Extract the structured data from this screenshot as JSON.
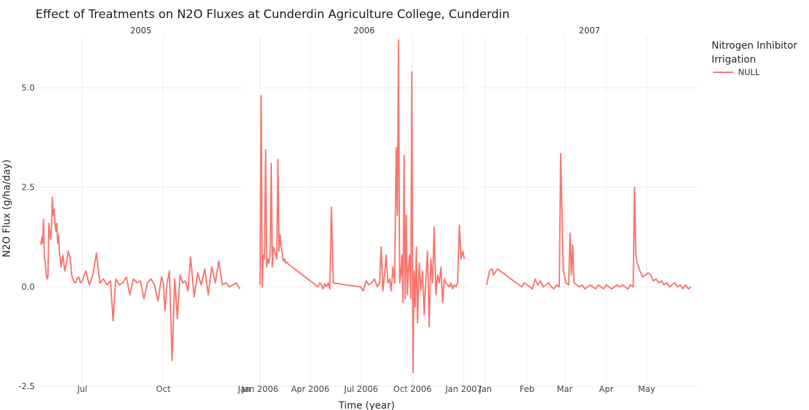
{
  "chart_data": {
    "type": "line",
    "title": "Effect of Treatments on N2O Fluxes at Cunderdin Agriculture College, Cunderdin",
    "xlabel": "Time (year)",
    "ylabel": "N2O Flux (g/ha/day)",
    "ylim": [
      -2.5,
      6.3
    ],
    "y_ticks": [
      -2.5,
      0.0,
      2.5,
      5.0
    ],
    "y_tick_labels": [
      "-2.5",
      "0.0",
      "2.5",
      "5.0"
    ],
    "grid": true,
    "legend": {
      "title_lines": [
        "Nitrogen Inhibitor",
        "Irrigation"
      ],
      "placement": "right",
      "entries": [
        {
          "label": "NULL",
          "color": "#F8766D"
        }
      ]
    },
    "series_color": "#F8766D",
    "panels": [
      {
        "label": "2005",
        "x_range": [
          "2005-05-12",
          "2005-12-31"
        ],
        "x_ticks": [
          {
            "date": "2005-07-01",
            "label": "Jul"
          },
          {
            "date": "2005-10-01",
            "label": "Oct"
          },
          {
            "date": "2006-01-01",
            "label": "Jan"
          }
        ],
        "series": [
          {
            "name": "NULL",
            "x": [
              "2005-05-15",
              "2005-05-16",
              "2005-05-17",
              "2005-05-18",
              "2005-05-19",
              "2005-05-20",
              "2005-05-21",
              "2005-05-22",
              "2005-05-23",
              "2005-05-24",
              "2005-05-25",
              "2005-05-26",
              "2005-05-27",
              "2005-05-28",
              "2005-05-29",
              "2005-05-30",
              "2005-05-31",
              "2005-06-01",
              "2005-06-02",
              "2005-06-03",
              "2005-06-04",
              "2005-06-05",
              "2005-06-06",
              "2005-06-07",
              "2005-06-09",
              "2005-06-11",
              "2005-06-13",
              "2005-06-15",
              "2005-06-17",
              "2005-06-19",
              "2005-06-21",
              "2005-06-23",
              "2005-06-25",
              "2005-06-27",
              "2005-06-29",
              "2005-07-01",
              "2005-07-05",
              "2005-07-09",
              "2005-07-13",
              "2005-07-17",
              "2005-07-21",
              "2005-07-25",
              "2005-07-29",
              "2005-08-02",
              "2005-08-05",
              "2005-08-08",
              "2005-08-12",
              "2005-08-16",
              "2005-08-20",
              "2005-08-24",
              "2005-08-28",
              "2005-09-01",
              "2005-09-05",
              "2005-09-09",
              "2005-09-13",
              "2005-09-17",
              "2005-09-21",
              "2005-09-25",
              "2005-09-29",
              "2005-10-01",
              "2005-10-03",
              "2005-10-05",
              "2005-10-08",
              "2005-10-11",
              "2005-10-14",
              "2005-10-17",
              "2005-10-20",
              "2005-10-23",
              "2005-10-26",
              "2005-10-29",
              "2005-11-01",
              "2005-11-05",
              "2005-11-09",
              "2005-11-13",
              "2005-11-17",
              "2005-11-21",
              "2005-11-25",
              "2005-11-29",
              "2005-12-03",
              "2005-12-07",
              "2005-12-11",
              "2005-12-15",
              "2005-12-19",
              "2005-12-23",
              "2005-12-27"
            ],
            "y": [
              1.05,
              1.25,
              1.1,
              1.7,
              0.7,
              0.6,
              0.3,
              0.2,
              0.25,
              1.6,
              1.4,
              1.2,
              1.5,
              2.25,
              1.8,
              1.95,
              1.6,
              1.4,
              1.6,
              1.1,
              1.3,
              0.9,
              0.7,
              0.5,
              0.8,
              0.4,
              0.6,
              0.9,
              0.75,
              0.3,
              0.15,
              0.1,
              0.2,
              0.25,
              0.1,
              0.15,
              0.4,
              0.05,
              0.3,
              0.85,
              0.1,
              0.2,
              0.05,
              0.15,
              -0.85,
              0.2,
              0.05,
              0.1,
              0.25,
              -0.2,
              0.2,
              0.1,
              0.15,
              -0.3,
              0.1,
              0.2,
              0.05,
              -0.35,
              0.25,
              0.1,
              -0.6,
              0.05,
              0.4,
              -1.85,
              0.2,
              -0.8,
              0.3,
              0.1,
              0.15,
              -0.1,
              0.75,
              -0.25,
              0.35,
              0.05,
              0.45,
              -0.2,
              0.5,
              0.1,
              0.65,
              0.05,
              0.1,
              0.0,
              0.05,
              0.1,
              -0.05
            ]
          }
        ]
      },
      {
        "label": "2006",
        "x_range": [
          "2005-12-31",
          "2007-01-10"
        ],
        "x_ticks": [
          {
            "date": "2006-01-01",
            "label": "Jan 2006"
          },
          {
            "date": "2006-04-01",
            "label": "Apr 2006"
          },
          {
            "date": "2006-07-01",
            "label": "Jul 2006"
          },
          {
            "date": "2006-10-01",
            "label": "Oct 2006"
          },
          {
            "date": "2007-01-01",
            "label": "Jan 2007"
          }
        ],
        "series": [
          {
            "name": "NULL",
            "x": [
              "2006-01-01",
              "2006-01-03",
              "2006-01-05",
              "2006-01-07",
              "2006-01-09",
              "2006-01-11",
              "2006-01-13",
              "2006-01-15",
              "2006-01-17",
              "2006-01-19",
              "2006-01-21",
              "2006-01-23",
              "2006-01-25",
              "2006-01-27",
              "2006-01-29",
              "2006-01-31",
              "2006-02-02",
              "2006-02-04",
              "2006-02-06",
              "2006-02-08",
              "2006-02-10",
              "2006-02-12",
              "2006-02-14",
              "2006-02-16",
              "2006-02-18",
              "2006-02-20",
              "2006-04-15",
              "2006-04-18",
              "2006-04-21",
              "2006-04-24",
              "2006-04-27",
              "2006-04-30",
              "2006-05-03",
              "2006-05-06",
              "2006-05-09",
              "2006-05-12",
              "2006-06-30",
              "2006-07-05",
              "2006-07-10",
              "2006-07-15",
              "2006-07-20",
              "2006-07-25",
              "2006-07-30",
              "2006-08-03",
              "2006-08-06",
              "2006-08-09",
              "2006-08-12",
              "2006-08-15",
              "2006-08-18",
              "2006-08-21",
              "2006-08-24",
              "2006-08-27",
              "2006-08-30",
              "2006-09-02",
              "2006-09-04",
              "2006-09-06",
              "2006-09-08",
              "2006-09-10",
              "2006-09-12",
              "2006-09-14",
              "2006-09-16",
              "2006-09-18",
              "2006-09-20",
              "2006-09-22",
              "2006-09-24",
              "2006-09-26",
              "2006-09-28",
              "2006-09-30",
              "2006-10-02",
              "2006-10-04",
              "2006-10-06",
              "2006-10-08",
              "2006-10-10",
              "2006-10-13",
              "2006-10-16",
              "2006-10-19",
              "2006-10-22",
              "2006-10-25",
              "2006-10-28",
              "2006-10-31",
              "2006-11-03",
              "2006-11-06",
              "2006-11-09",
              "2006-11-12",
              "2006-11-15",
              "2006-11-18",
              "2006-11-21",
              "2006-11-24",
              "2006-11-27",
              "2006-11-30",
              "2006-12-03",
              "2006-12-06",
              "2006-12-09",
              "2006-12-12",
              "2006-12-15",
              "2006-12-18",
              "2006-12-21",
              "2006-12-24",
              "2006-12-27",
              "2006-12-30",
              "2007-01-02"
            ],
            "y": [
              0.05,
              4.8,
              0.0,
              0.8,
              0.7,
              3.45,
              0.5,
              0.7,
              0.6,
              0.8,
              3.1,
              0.5,
              1.0,
              0.9,
              0.8,
              0.7,
              3.2,
              0.9,
              1.3,
              1.0,
              0.8,
              0.65,
              0.7,
              0.6,
              0.62,
              0.58,
              0.0,
              0.1,
              0.05,
              -0.05,
              0.08,
              0.0,
              0.1,
              -0.05,
              2.0,
              0.1,
              0.0,
              -0.1,
              0.15,
              0.05,
              0.1,
              0.2,
              0.0,
              0.1,
              1.0,
              -0.1,
              0.3,
              0.8,
              0.1,
              0.2,
              -0.1,
              0.5,
              0.1,
              3.5,
              1.8,
              6.2,
              0.1,
              0.3,
              0.8,
              -0.4,
              3.3,
              -0.3,
              1.8,
              -0.2,
              0.5,
              0.8,
              -0.3,
              5.4,
              -2.15,
              0.4,
              -0.5,
              1.0,
              -0.9,
              0.6,
              -0.1,
              0.4,
              -0.7,
              0.2,
              0.9,
              -1.0,
              0.7,
              0.1,
              1.5,
              -0.2,
              0.3,
              0.1,
              0.5,
              -0.4,
              0.2,
              0.1,
              0.05,
              0.0,
              0.1,
              -0.05,
              0.05,
              0.0,
              0.1,
              1.55,
              0.7,
              0.9,
              0.7
            ]
          }
        ]
      },
      {
        "label": "2007",
        "x_range": [
          "2006-12-29",
          "2007-06-08"
        ],
        "x_ticks": [
          {
            "date": "2007-01-01",
            "label": "Jan"
          },
          {
            "date": "2007-02-01",
            "label": "Feb"
          },
          {
            "date": "2007-03-01",
            "label": "Mar"
          },
          {
            "date": "2007-04-01",
            "label": "Apr"
          },
          {
            "date": "2007-05-01",
            "label": "May"
          }
        ],
        "series": [
          {
            "name": "NULL",
            "x": [
              "2007-01-02",
              "2007-01-04",
              "2007-01-06",
              "2007-01-07",
              "2007-01-08",
              "2007-01-10",
              "2007-01-12",
              "2007-01-14",
              "2007-01-16",
              "2007-01-18",
              "2007-01-20",
              "2007-01-22",
              "2007-01-24",
              "2007-01-26",
              "2007-01-28",
              "2007-01-30",
              "2007-02-01",
              "2007-02-03",
              "2007-02-05",
              "2007-02-07",
              "2007-02-09",
              "2007-02-11",
              "2007-02-13",
              "2007-02-15",
              "2007-02-17",
              "2007-02-19",
              "2007-02-21",
              "2007-02-23",
              "2007-02-25",
              "2007-02-26",
              "2007-02-28",
              "2007-03-02",
              "2007-03-04",
              "2007-03-05",
              "2007-03-06",
              "2007-03-07",
              "2007-03-08",
              "2007-03-10",
              "2007-03-12",
              "2007-03-14",
              "2007-03-16",
              "2007-03-18",
              "2007-03-20",
              "2007-03-22",
              "2007-03-24",
              "2007-03-26",
              "2007-03-28",
              "2007-03-30",
              "2007-04-01",
              "2007-04-03",
              "2007-04-05",
              "2007-04-07",
              "2007-04-09",
              "2007-04-11",
              "2007-04-13",
              "2007-04-15",
              "2007-04-17",
              "2007-04-19",
              "2007-04-21",
              "2007-04-22",
              "2007-04-23",
              "2007-04-24",
              "2007-04-26",
              "2007-04-28",
              "2007-04-30",
              "2007-05-02",
              "2007-05-04",
              "2007-05-06",
              "2007-05-08",
              "2007-05-10",
              "2007-05-12",
              "2007-05-14",
              "2007-05-16",
              "2007-05-18",
              "2007-05-20",
              "2007-05-22",
              "2007-05-24",
              "2007-05-26",
              "2007-05-28",
              "2007-05-30",
              "2007-06-01",
              "2007-06-03"
            ],
            "y": [
              0.05,
              0.4,
              0.45,
              0.3,
              0.35,
              0.45,
              0.4,
              0.35,
              0.3,
              0.25,
              0.2,
              0.15,
              0.1,
              0.05,
              0.0,
              0.1,
              0.05,
              0.0,
              -0.05,
              0.2,
              0.05,
              0.15,
              0.0,
              0.05,
              0.1,
              0.0,
              -0.05,
              0.05,
              0.0,
              3.35,
              0.4,
              0.1,
              0.05,
              1.35,
              0.3,
              1.05,
              0.1,
              0.05,
              0.0,
              0.05,
              -0.05,
              0.0,
              0.05,
              0.0,
              -0.05,
              0.05,
              0.0,
              -0.05,
              0.05,
              0.0,
              -0.05,
              0.0,
              0.05,
              0.0,
              0.05,
              0.0,
              -0.05,
              0.05,
              0.0,
              2.5,
              0.8,
              0.6,
              0.4,
              0.25,
              0.3,
              0.35,
              0.3,
              0.15,
              0.2,
              0.1,
              0.15,
              0.05,
              0.1,
              0.0,
              0.05,
              0.1,
              0.0,
              0.05,
              -0.05,
              0.05,
              -0.05,
              0.0
            ]
          }
        ]
      }
    ]
  }
}
